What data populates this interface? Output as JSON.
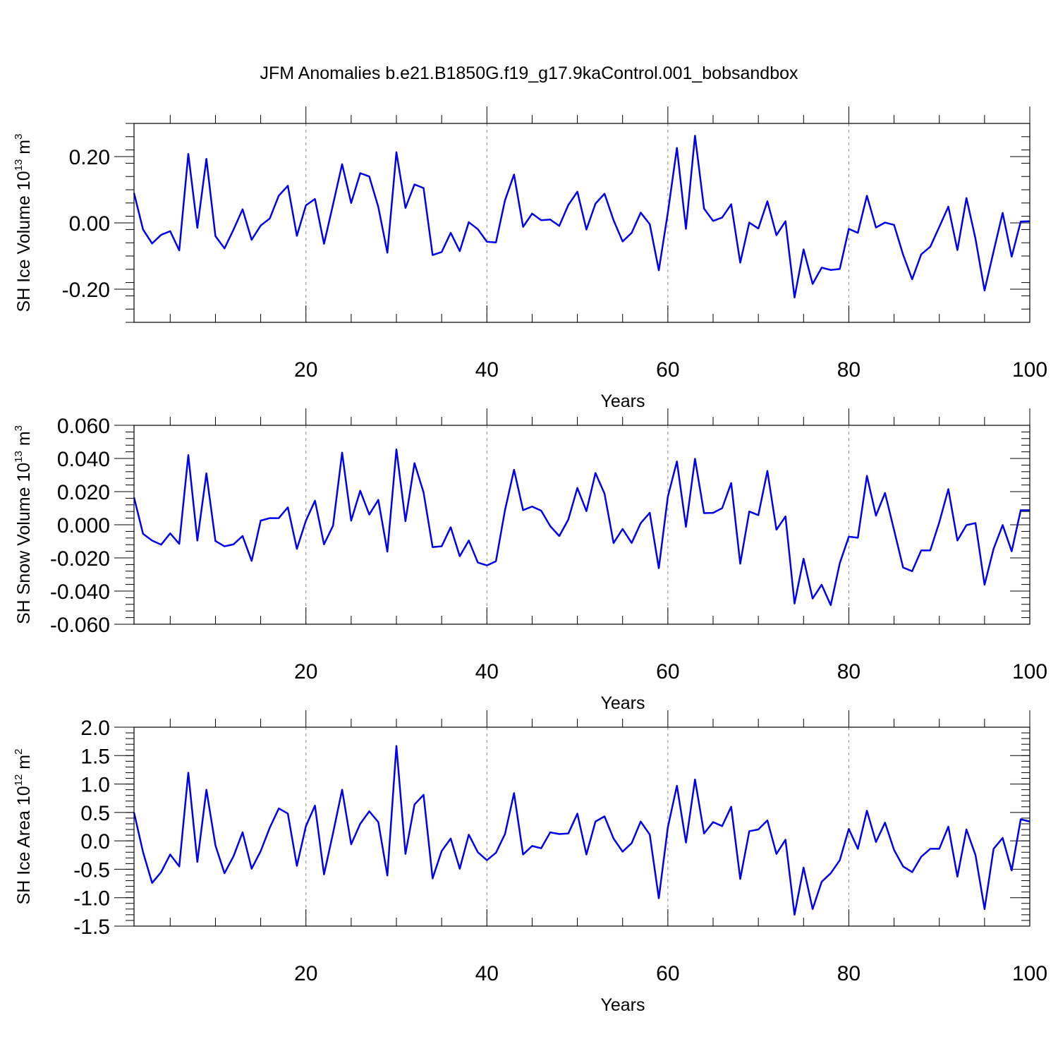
{
  "title": "JFM Anomalies b.e21.B1850G.f19_g17.9kaControl.001_bobsandbox",
  "colors": {
    "line": "#0000ee",
    "axis": "#000000",
    "grid": "#888888"
  },
  "chart_data": [
    {
      "type": "line",
      "name": "ice-volume",
      "ylabel_main": "SH Ice Volume 10",
      "ylabel_sup": "13",
      "ylabel_unit": " m",
      "ylabel_unit_sup": "3",
      "xlabel": "Years",
      "xlim": [
        1,
        100
      ],
      "ylim": [
        -0.3,
        0.3
      ],
      "xticks": [
        20,
        40,
        60,
        80,
        100
      ],
      "xtick_labels": [
        "20",
        "40",
        "60",
        "80",
        "100"
      ],
      "yticks": [
        -0.2,
        0.0,
        0.2
      ],
      "ytick_labels": [
        "-0.20",
        "0.00",
        "0.20"
      ],
      "ydecimals": 2,
      "grid_x": [
        20,
        40,
        60,
        80
      ],
      "values": [
        0.09,
        -0.02,
        -0.062,
        -0.036,
        -0.025,
        -0.083,
        0.208,
        -0.015,
        0.193,
        -0.04,
        -0.077,
        -0.02,
        0.041,
        -0.051,
        -0.008,
        0.013,
        0.082,
        0.112,
        -0.039,
        0.053,
        0.072,
        -0.063,
        0.056,
        0.177,
        0.06,
        0.15,
        0.14,
        0.048,
        -0.09,
        0.213,
        0.045,
        0.116,
        0.105,
        -0.097,
        -0.088,
        -0.03,
        -0.085,
        0.002,
        -0.019,
        -0.057,
        -0.059,
        0.068,
        0.146,
        -0.012,
        0.028,
        0.008,
        0.01,
        -0.009,
        0.054,
        0.094,
        -0.02,
        0.058,
        0.088,
        0.008,
        -0.056,
        -0.03,
        0.031,
        -0.004,
        -0.143,
        0.031,
        0.226,
        -0.018,
        0.263,
        0.043,
        0.006,
        0.016,
        0.056,
        -0.12,
        0.001,
        -0.017,
        0.065,
        -0.037,
        0.005,
        -0.225,
        -0.08,
        -0.184,
        -0.135,
        -0.142,
        -0.139,
        -0.018,
        -0.03,
        0.082,
        -0.014,
        0.001,
        -0.006,
        -0.096,
        -0.17,
        -0.095,
        -0.072,
        -0.012,
        0.049,
        -0.082,
        0.075,
        -0.048,
        -0.204,
        -0.086,
        0.03,
        -0.102,
        0.004,
        0.005
      ]
    },
    {
      "type": "line",
      "name": "snow-volume",
      "ylabel_main": "SH Snow Volume 10",
      "ylabel_sup": "13",
      "ylabel_unit": " m",
      "ylabel_unit_sup": "3",
      "xlabel": "Years",
      "xlim": [
        1,
        100
      ],
      "ylim": [
        -0.06,
        0.06
      ],
      "xticks": [
        20,
        40,
        60,
        80,
        100
      ],
      "xtick_labels": [
        "20",
        "40",
        "60",
        "80",
        "100"
      ],
      "yticks": [
        -0.06,
        -0.04,
        -0.02,
        0.0,
        0.02,
        0.04,
        0.06
      ],
      "ytick_labels": [
        "-0.060",
        "-0.040",
        "-0.020",
        "0.000",
        "0.020",
        "0.040",
        "0.060"
      ],
      "ydecimals": 3,
      "grid_x": [
        20,
        40,
        60,
        80
      ],
      "values": [
        0.0165,
        -0.0055,
        -0.0095,
        -0.012,
        -0.0052,
        -0.0115,
        0.042,
        -0.0095,
        0.031,
        -0.0098,
        -0.013,
        -0.0118,
        -0.0068,
        -0.0218,
        0.0025,
        0.004,
        0.004,
        0.0105,
        -0.0145,
        0.0025,
        0.0145,
        -0.0118,
        -0.0005,
        0.0435,
        0.0025,
        0.0205,
        0.0062,
        0.015,
        -0.0162,
        0.0455,
        0.0022,
        0.0372,
        0.0195,
        -0.0135,
        -0.013,
        -0.0015,
        -0.019,
        -0.0095,
        -0.0228,
        -0.0245,
        -0.022,
        0.0088,
        0.0332,
        0.0088,
        0.011,
        0.0085,
        -0.0008,
        -0.0068,
        0.0032,
        0.0222,
        0.0082,
        0.0312,
        0.0188,
        -0.011,
        -0.0025,
        -0.011,
        0.001,
        0.0072,
        -0.0262,
        0.017,
        0.0382,
        -0.0012,
        0.0398,
        0.007,
        0.0072,
        0.01,
        0.0252,
        -0.0235,
        0.008,
        0.0058,
        0.0325,
        -0.003,
        0.005,
        -0.0475,
        -0.0205,
        -0.0445,
        -0.0362,
        -0.0485,
        -0.0232,
        -0.0072,
        -0.0078,
        0.0295,
        0.0055,
        0.0192,
        -0.0032,
        -0.0258,
        -0.028,
        -0.0155,
        -0.0155,
        0.0015,
        0.0215,
        -0.0095,
        -0.0002,
        0.001,
        -0.0362,
        -0.0145,
        -0.0002,
        -0.016,
        0.0088,
        0.0088
      ]
    },
    {
      "type": "line",
      "name": "ice-area",
      "ylabel_main": "SH Ice Area 10",
      "ylabel_sup": "12",
      "ylabel_unit": " m",
      "ylabel_unit_sup": "2",
      "xlabel": "Years",
      "xlim": [
        1,
        100
      ],
      "ylim": [
        -1.5,
        2.0
      ],
      "xticks": [
        20,
        40,
        60,
        80,
        100
      ],
      "xtick_labels": [
        "20",
        "40",
        "60",
        "80",
        "100"
      ],
      "yticks": [
        -1.5,
        -1.0,
        -0.5,
        0.0,
        0.5,
        1.0,
        1.5,
        2.0
      ],
      "ytick_labels": [
        "-1.5",
        "-1.0",
        "-0.5",
        "0.0",
        "0.5",
        "1.0",
        "1.5",
        "2.0"
      ],
      "ydecimals": 1,
      "grid_x": [
        20,
        40,
        60,
        80
      ],
      "values": [
        0.5,
        -0.2,
        -0.74,
        -0.55,
        -0.24,
        -0.45,
        1.2,
        -0.37,
        0.9,
        -0.08,
        -0.57,
        -0.27,
        0.15,
        -0.49,
        -0.18,
        0.23,
        0.57,
        0.48,
        -0.44,
        0.26,
        0.62,
        -0.59,
        0.14,
        0.9,
        -0.06,
        0.3,
        0.52,
        0.33,
        -0.61,
        1.67,
        -0.23,
        0.64,
        0.81,
        -0.66,
        -0.18,
        0.04,
        -0.49,
        0.11,
        -0.2,
        -0.34,
        -0.21,
        0.12,
        0.84,
        -0.24,
        -0.09,
        -0.13,
        0.15,
        0.12,
        0.13,
        0.48,
        -0.24,
        0.34,
        0.43,
        0.04,
        -0.19,
        -0.04,
        0.34,
        0.11,
        -1.01,
        0.24,
        0.97,
        -0.03,
        1.08,
        0.13,
        0.33,
        0.26,
        0.6,
        -0.67,
        0.17,
        0.2,
        0.36,
        -0.23,
        0.02,
        -1.3,
        -0.47,
        -1.2,
        -0.72,
        -0.57,
        -0.34,
        0.21,
        -0.14,
        0.53,
        -0.02,
        0.32,
        -0.16,
        -0.45,
        -0.55,
        -0.28,
        -0.14,
        -0.14,
        0.25,
        -0.63,
        0.2,
        -0.25,
        -1.2,
        -0.14,
        0.05,
        -0.52,
        0.38,
        0.34
      ]
    }
  ]
}
